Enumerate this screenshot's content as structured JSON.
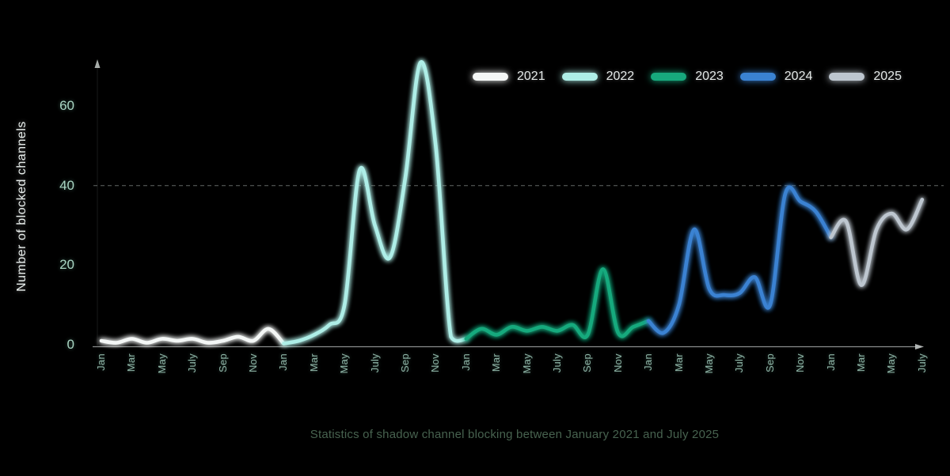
{
  "chart_data": {
    "type": "line",
    "title": "Statistics of shadow channel blocking between January 2021 and July 2025",
    "ylabel": "Number of blocked channels",
    "x_span": [
      "Jan 2021",
      "July 2025"
    ],
    "ylim": [
      0,
      75
    ],
    "yticks": [
      0,
      20,
      40,
      60
    ],
    "gridline_y": 40,
    "grid": "single dashed horizontal line at 40",
    "legend_position": "top-right",
    "background_color": "#000000",
    "x_tick_labels": [
      "Jan",
      "Mar",
      "May",
      "July",
      "Sep",
      "Nov",
      "Jan",
      "Mar",
      "May",
      "July",
      "Sep",
      "Nov",
      "Jan",
      "Mar",
      "May",
      "July",
      "Sep",
      "Nov",
      "Jan",
      "Mar",
      "May",
      "July",
      "Sep",
      "Nov",
      "Jan",
      "Mar",
      "May",
      "July"
    ],
    "series": [
      {
        "name": "2021",
        "color": "#f4f7f6",
        "start_month_index": 0,
        "months": [
          "Jan",
          "Feb",
          "Mar",
          "Apr",
          "May",
          "Jun",
          "Jul",
          "Aug",
          "Sep",
          "Oct",
          "Nov",
          "Dec"
        ],
        "values": [
          1,
          0.5,
          1.5,
          0.5,
          1.5,
          1,
          1.5,
          0.5,
          1,
          2,
          1,
          4
        ]
      },
      {
        "name": "2022",
        "color": "#aeeee7",
        "start_month_index": 12,
        "months": [
          "Jan",
          "Feb",
          "Mar",
          "Apr",
          "May",
          "Jun",
          "Jul",
          "Aug",
          "Sep",
          "Oct",
          "Nov",
          "Dec"
        ],
        "values": [
          0.3,
          1,
          2.5,
          5,
          10,
          44,
          30,
          22,
          42,
          71,
          50,
          2
        ]
      },
      {
        "name": "2023",
        "color": "#17a97d",
        "start_month_index": 24,
        "months": [
          "Jan",
          "Feb",
          "Mar",
          "Apr",
          "May",
          "Jun",
          "Jul",
          "Aug",
          "Sep",
          "Oct",
          "Nov",
          "Dec"
        ],
        "values": [
          1.5,
          4,
          2.5,
          4.5,
          3.5,
          4.5,
          3.5,
          5,
          2.5,
          19,
          3,
          4.5
        ]
      },
      {
        "name": "2024",
        "color": "#3a82d2",
        "start_month_index": 36,
        "months": [
          "Jan",
          "Feb",
          "Mar",
          "Apr",
          "May",
          "Jun",
          "Jul",
          "Aug",
          "Sep",
          "Oct",
          "Nov",
          "Dec"
        ],
        "values": [
          6,
          3,
          10,
          29,
          14,
          12.5,
          13,
          17,
          10,
          38,
          36,
          33.5
        ]
      },
      {
        "name": "2025",
        "color": "#bdc6cf",
        "start_month_index": 48,
        "months": [
          "Jan",
          "Feb",
          "Mar",
          "Apr",
          "May",
          "Jun",
          "Jul"
        ],
        "values": [
          27,
          31,
          15,
          29,
          33,
          29,
          36.5
        ]
      }
    ]
  }
}
